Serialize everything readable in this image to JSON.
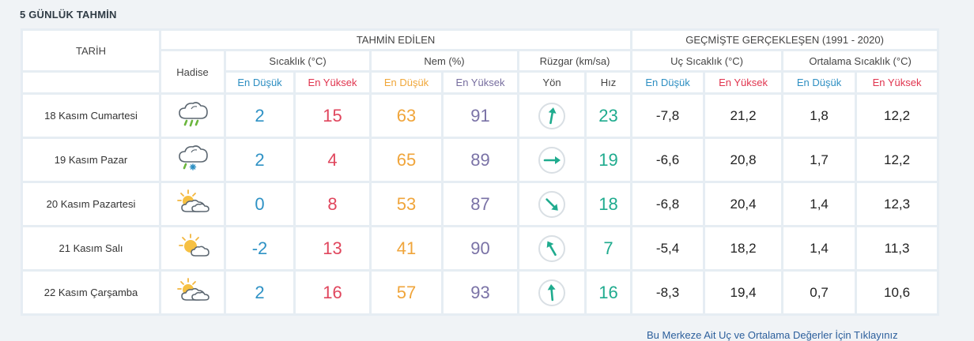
{
  "section_title": "5 GÜNLÜK TAHMİN",
  "headers": {
    "tarih": "TARİH",
    "forecast": "TAHMİN EDİLEN",
    "history": "GEÇMİŞTE GERÇEKLEŞEN (1991 - 2020)",
    "hadise": "Hadise",
    "sicaklik": "Sıcaklık (°C)",
    "nem": "Nem (%)",
    "ruzgar": "Rüzgar (km/sa)",
    "uc_sicaklik": "Uç Sıcaklık (°C)",
    "ort_sicaklik": "Ortalama Sıcaklık (°C)",
    "en_dusuk": "En Düşük",
    "en_yuksek": "En Yüksek",
    "yon": "Yön",
    "hiz": "Hız"
  },
  "rows": [
    {
      "date": "18 Kasım Cumartesi",
      "icon": "cloud-rain-icon",
      "t_min": "2",
      "t_max": "15",
      "h_min": "63",
      "h_max": "91",
      "wind_dir_deg": 10,
      "wind_speed": "23",
      "ext_min": "-7,8",
      "ext_max": "21,2",
      "avg_min": "1,8",
      "avg_max": "12,2"
    },
    {
      "date": "19 Kasım Pazar",
      "icon": "cloud-sleet-icon",
      "t_min": "2",
      "t_max": "4",
      "h_min": "65",
      "h_max": "89",
      "wind_dir_deg": 90,
      "wind_speed": "19",
      "ext_min": "-6,6",
      "ext_max": "20,8",
      "avg_min": "1,7",
      "avg_max": "12,2"
    },
    {
      "date": "20 Kasım Pazartesi",
      "icon": "partly-cloudy-icon",
      "t_min": "0",
      "t_max": "8",
      "h_min": "53",
      "h_max": "87",
      "wind_dir_deg": 135,
      "wind_speed": "18",
      "ext_min": "-6,8",
      "ext_max": "20,4",
      "avg_min": "1,4",
      "avg_max": "12,3"
    },
    {
      "date": "21 Kasım Salı",
      "icon": "sun-cloud-icon",
      "t_min": "-2",
      "t_max": "13",
      "h_min": "41",
      "h_max": "90",
      "wind_dir_deg": -30,
      "wind_speed": "7",
      "ext_min": "-5,4",
      "ext_max": "18,2",
      "avg_min": "1,4",
      "avg_max": "11,3"
    },
    {
      "date": "22 Kasım Çarşamba",
      "icon": "partly-cloudy-icon",
      "t_min": "2",
      "t_max": "16",
      "h_min": "57",
      "h_max": "93",
      "wind_dir_deg": -5,
      "wind_speed": "16",
      "ext_min": "-8,3",
      "ext_max": "19,4",
      "avg_min": "0,7",
      "avg_max": "10,6"
    }
  ],
  "bottom_link": "Bu Merkeze Ait Uç ve Ortalama Değerler İçin Tıklayınız"
}
